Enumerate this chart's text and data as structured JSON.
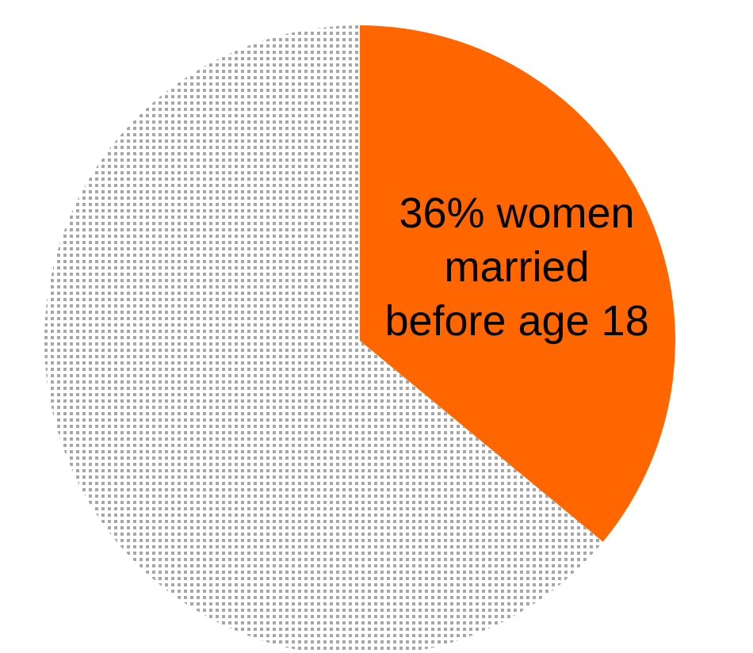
{
  "chart_data": {
    "type": "pie",
    "categories": [
      "36% women\nmarried\nbefore age 18",
      null
    ],
    "values": [
      36,
      64
    ],
    "colors": [
      "#ff6600",
      "#a6a6a6"
    ]
  }
}
